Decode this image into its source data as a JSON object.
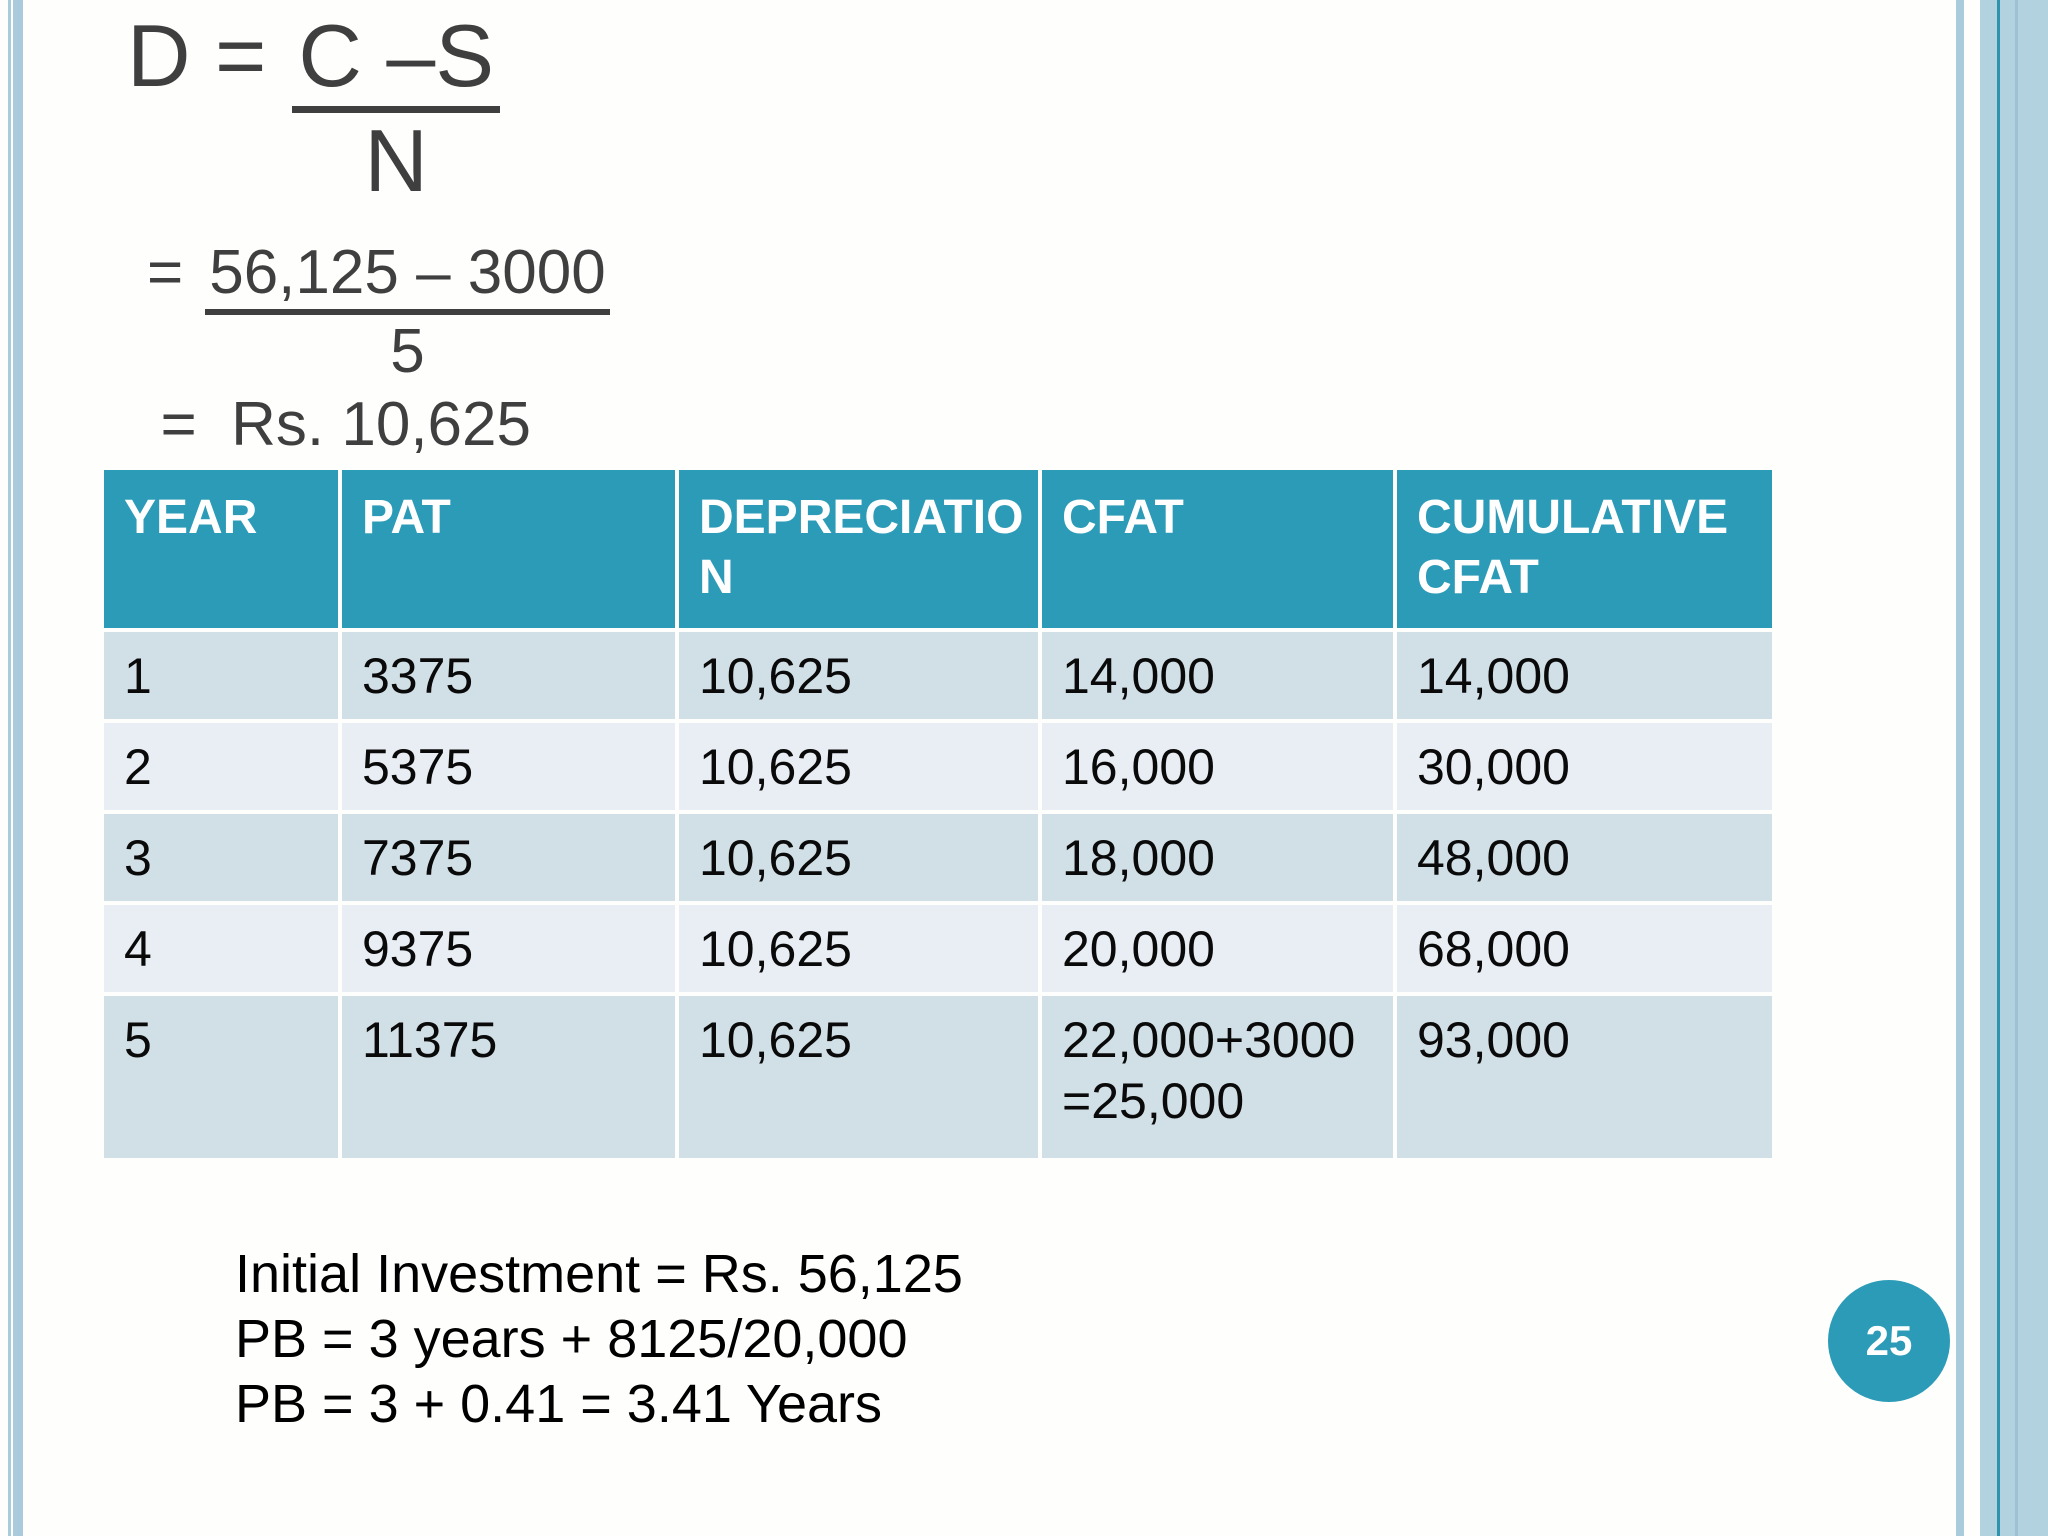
{
  "slide": {
    "formula": {
      "step1": {
        "lhs": "D =",
        "numerator": "C –S",
        "denominator": "N"
      },
      "step2": {
        "lhs": "=",
        "numerator": "56,125 – 3000",
        "denominator": "5"
      },
      "step3": {
        "underscore": "_",
        "text": "=  Rs. 10,625"
      }
    },
    "table": {
      "headers": [
        "YEAR",
        "PAT",
        "DEPRECIATION",
        "CFAT",
        "CUMULATIVE CFAT"
      ],
      "rows": [
        [
          "1",
          "3375",
          "10,625",
          "14,000",
          "14,000"
        ],
        [
          "2",
          "5375",
          "10,625",
          "16,000",
          "30,000"
        ],
        [
          "3",
          "7375",
          "10,625",
          "18,000",
          "48,000"
        ],
        [
          "4",
          "9375",
          "10,625",
          "20,000",
          "68,000"
        ],
        [
          "5",
          "11375",
          "10,625",
          "22,000+3000\n=25,000",
          "93,000"
        ]
      ]
    },
    "notes": {
      "line1": "Initial Investment = Rs. 56,125",
      "line2": "PB = 3 years + 8125/20,000",
      "line3": "PB = 3 + 0.41 = 3.41 Years"
    },
    "page_number": "25",
    "colors": {
      "header_teal": "#2C9BB8",
      "row_odd": "#D1DFE6",
      "row_even": "#E9EEF4",
      "circle_teal": "#2C9BB8",
      "side_stripe_blue": "#A9CBDC",
      "right_panel_blue": "#B3D2DF",
      "right_panel_dark_line": "#2F93AE",
      "right_panel_mid_line": "#9CC2D4",
      "formula_text_gray": "#3F3F3F",
      "table_text": "#0A0A0A"
    }
  }
}
